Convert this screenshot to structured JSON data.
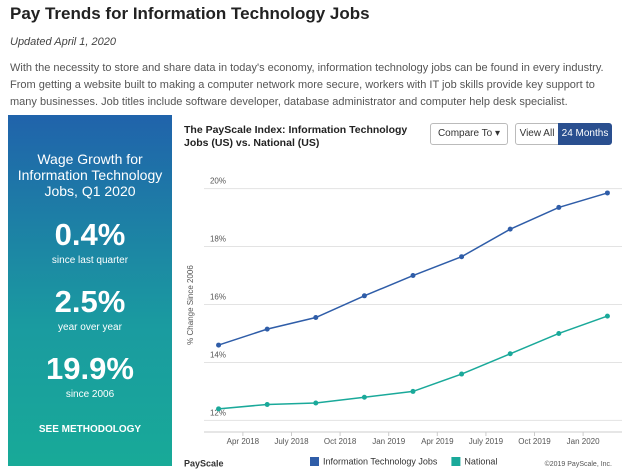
{
  "header": {
    "title": "Pay Trends for Information Technology Jobs",
    "updated": "Updated April 1, 2020",
    "intro": "With the necessity to store and share data in today's economy, information technology jobs can be found in every industry. From getting a website built to making a computer network more secure, workers with IT job skills provide key support to many businesses. Job titles include software developer, database administrator and computer help desk specialist."
  },
  "panel": {
    "heading": "Wage Growth for Information Technology Jobs, Q1 2020",
    "stats": [
      {
        "value": "0.4%",
        "label": "since last quarter"
      },
      {
        "value": "2.5%",
        "label": "year over year"
      },
      {
        "value": "19.9%",
        "label": "since 2006"
      }
    ],
    "link": "SEE METHODOLOGY"
  },
  "controls": {
    "compare": "Compare To",
    "view_all": "View All",
    "active": "24 Months"
  },
  "footer": {
    "logo": "PayScale",
    "copyright": "©2019 PayScale, Inc."
  },
  "chart_data": {
    "type": "line",
    "title": "The PayScale Index: Information Technology Jobs (US) vs. National (US)",
    "y_label": "% Change Since 2006",
    "x": [
      0,
      1,
      2,
      3,
      4,
      5,
      6,
      7,
      8
    ],
    "xlim": [
      -0.3,
      8.3
    ],
    "xticks": [
      {
        "value": 0.5,
        "label": "Apr 2018"
      },
      {
        "value": 1.5,
        "label": "July 2018"
      },
      {
        "value": 2.5,
        "label": "Oct 2018"
      },
      {
        "value": 3.5,
        "label": "Jan 2019"
      },
      {
        "value": 4.5,
        "label": "Apr 2019"
      },
      {
        "value": 5.5,
        "label": "July 2019"
      },
      {
        "value": 6.5,
        "label": "Oct 2019"
      },
      {
        "value": 7.5,
        "label": "Jan 2020"
      }
    ],
    "ylim": [
      11.6,
      20.4
    ],
    "yticks": [
      {
        "value": 12,
        "label": "12%"
      },
      {
        "value": 14,
        "label": "14%"
      },
      {
        "value": 16,
        "label": "16%"
      },
      {
        "value": 18,
        "label": "18%"
      },
      {
        "value": 20,
        "label": "20%"
      }
    ],
    "grid": true,
    "series": [
      {
        "name": "Information Technology Jobs",
        "color": "#2f5da8",
        "values": [
          14.6,
          15.15,
          15.55,
          16.3,
          17.0,
          17.65,
          18.6,
          19.35,
          19.85
        ]
      },
      {
        "name": "National",
        "color": "#1aa99a",
        "values": [
          12.4,
          12.55,
          12.6,
          12.8,
          13.0,
          13.6,
          14.3,
          15.0,
          15.6
        ]
      }
    ]
  }
}
